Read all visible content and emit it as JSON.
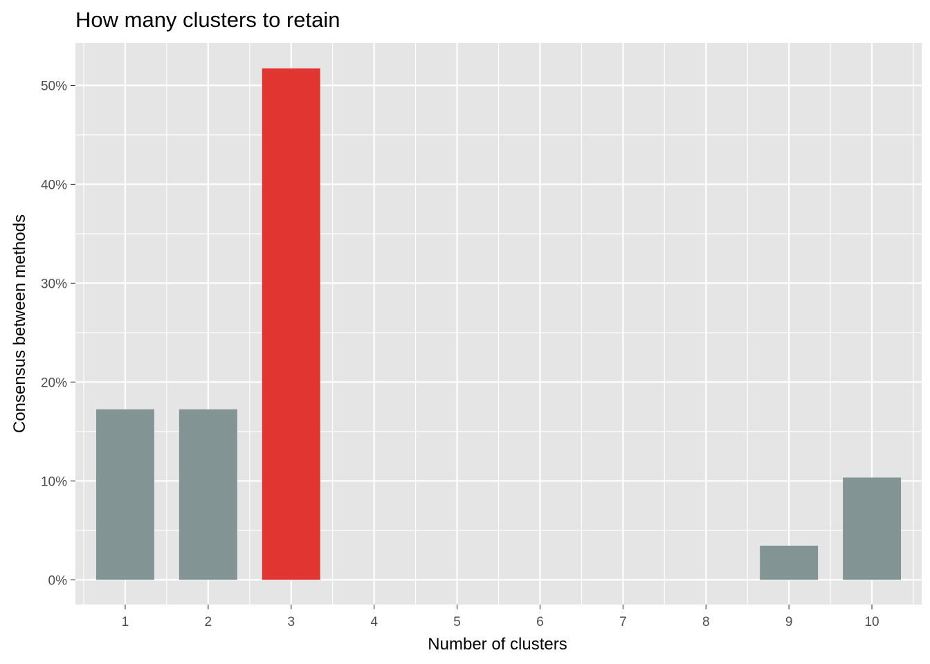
{
  "chart_data": {
    "type": "bar",
    "title": "How many clusters to retain",
    "xlabel": "Number of clusters",
    "ylabel": "Consensus between methods",
    "categories": [
      "1",
      "2",
      "3",
      "4",
      "5",
      "6",
      "7",
      "8",
      "9",
      "10"
    ],
    "values": [
      17.24,
      17.24,
      51.72,
      0,
      0,
      0,
      0,
      0,
      3.45,
      10.34
    ],
    "highlight_category": "3",
    "ylim": [
      -2.5,
      54.3
    ],
    "y_ticks": [
      0,
      10,
      20,
      30,
      40,
      50
    ],
    "y_tick_labels": [
      "0%",
      "10%",
      "20%",
      "30%",
      "40%",
      "50%"
    ],
    "grid": true,
    "colors": {
      "panel_background": "#e5e5e5",
      "grid_line": "#ffffff",
      "bar_default": "#839494",
      "bar_highlight": "#e03530"
    }
  }
}
